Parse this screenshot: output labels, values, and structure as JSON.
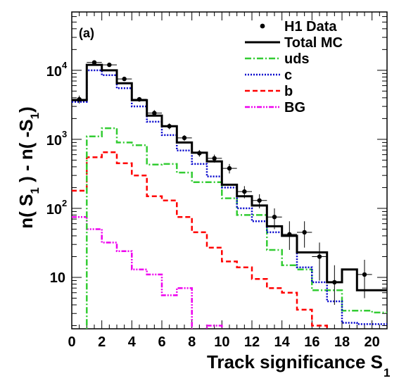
{
  "chart_data": {
    "type": "step-histogram",
    "panel_label": "(a)",
    "xlabel": "Track significance S",
    "xlabel_subscript": "1",
    "ylabel_parts": [
      "n( S",
      "1",
      " ) - n( -S",
      "1",
      ")"
    ],
    "x_range": [
      0,
      21
    ],
    "y_range": [
      1.8,
      70000
    ],
    "y_scale": "log",
    "x_ticks": [
      0,
      2,
      4,
      6,
      8,
      10,
      12,
      14,
      16,
      18,
      20
    ],
    "y_ticks": [
      {
        "value": 10,
        "label": "10"
      },
      {
        "value": 100,
        "label": "10",
        "exp": "2"
      },
      {
        "value": 1000,
        "label": "10",
        "exp": "3"
      },
      {
        "value": 10000,
        "label": "10",
        "exp": "4"
      }
    ],
    "bin_edges": [
      0,
      1,
      2,
      3,
      4,
      5,
      6,
      7,
      8,
      9,
      10,
      11,
      12,
      13,
      14,
      15,
      16,
      17,
      18,
      19,
      20,
      21
    ],
    "legend": {
      "position": "top-right",
      "entries": [
        {
          "key": "data",
          "label": "H1 Data"
        },
        {
          "key": "total",
          "label": "Total MC"
        },
        {
          "key": "uds",
          "label": "uds"
        },
        {
          "key": "c",
          "label": "c"
        },
        {
          "key": "b",
          "label": "b"
        },
        {
          "key": "bg",
          "label": "BG"
        }
      ]
    },
    "series": [
      {
        "key": "total",
        "name": "Total MC",
        "color": "#000000",
        "style": "solid",
        "values": [
          3700,
          12000,
          10000,
          6500,
          3700,
          2200,
          1550,
          900,
          640,
          480,
          220,
          150,
          110,
          55,
          40,
          23,
          23,
          8.5,
          13,
          6.5,
          6.5
        ]
      },
      {
        "key": "uds",
        "name": "uds",
        "color": "#33cc33",
        "style": "dashdot",
        "values": [
          1,
          1100,
          1450,
          900,
          820,
          430,
          440,
          330,
          240,
          240,
          140,
          80,
          80,
          25,
          15,
          13,
          6.5,
          6.5,
          3.3,
          3.3,
          3.1
        ]
      },
      {
        "key": "c",
        "name": "c",
        "color": "#0000cc",
        "style": "dotted",
        "values": [
          3500,
          10000,
          8500,
          5500,
          3000,
          1800,
          1150,
          690,
          440,
          290,
          200,
          100,
          65,
          45,
          40,
          14,
          8.5,
          4.5,
          2.2,
          2.1,
          2.1
        ]
      },
      {
        "key": "b",
        "name": "b",
        "color": "#ff0000",
        "style": "dashed",
        "values": [
          180,
          550,
          650,
          450,
          300,
          150,
          130,
          75,
          45,
          27,
          17,
          14,
          9.5,
          7,
          6,
          3.4,
          2,
          1.6,
          1.6,
          1.6,
          1.6
        ]
      },
      {
        "key": "bg",
        "name": "BG",
        "color": "#ee00ee",
        "style": "dashdotdot",
        "values": [
          75,
          50,
          32,
          24,
          13,
          11,
          5.5,
          7,
          1.5,
          2,
          1.5,
          1.5,
          1.5,
          1.5,
          1.5,
          1.5,
          1.5,
          1.5,
          1.5,
          1.5,
          1.5
        ]
      }
    ],
    "data_points": {
      "name": "H1 Data",
      "x": [
        0.5,
        1.5,
        2.5,
        3.5,
        4.5,
        5.5,
        6.5,
        7.5,
        8.5,
        9.5,
        10.5,
        11.5,
        12.5,
        13.5,
        14.5,
        15.5,
        16.5,
        17.5,
        19.5
      ],
      "y": [
        3800,
        13000,
        12000,
        7500,
        3800,
        2400,
        1550,
        1050,
        630,
        530,
        380,
        175,
        130,
        75,
        42,
        45,
        20,
        8.5,
        11
      ],
      "err_low": [
        3300,
        12300,
        11300,
        7000,
        3500,
        2200,
        1400,
        950,
        560,
        460,
        320,
        140,
        100,
        50,
        25,
        27,
        9,
        4,
        5
      ],
      "err_high": [
        4300,
        13700,
        12700,
        8000,
        4100,
        2650,
        1700,
        1150,
        700,
        600,
        440,
        210,
        160,
        100,
        65,
        65,
        32,
        15,
        18
      ]
    }
  }
}
